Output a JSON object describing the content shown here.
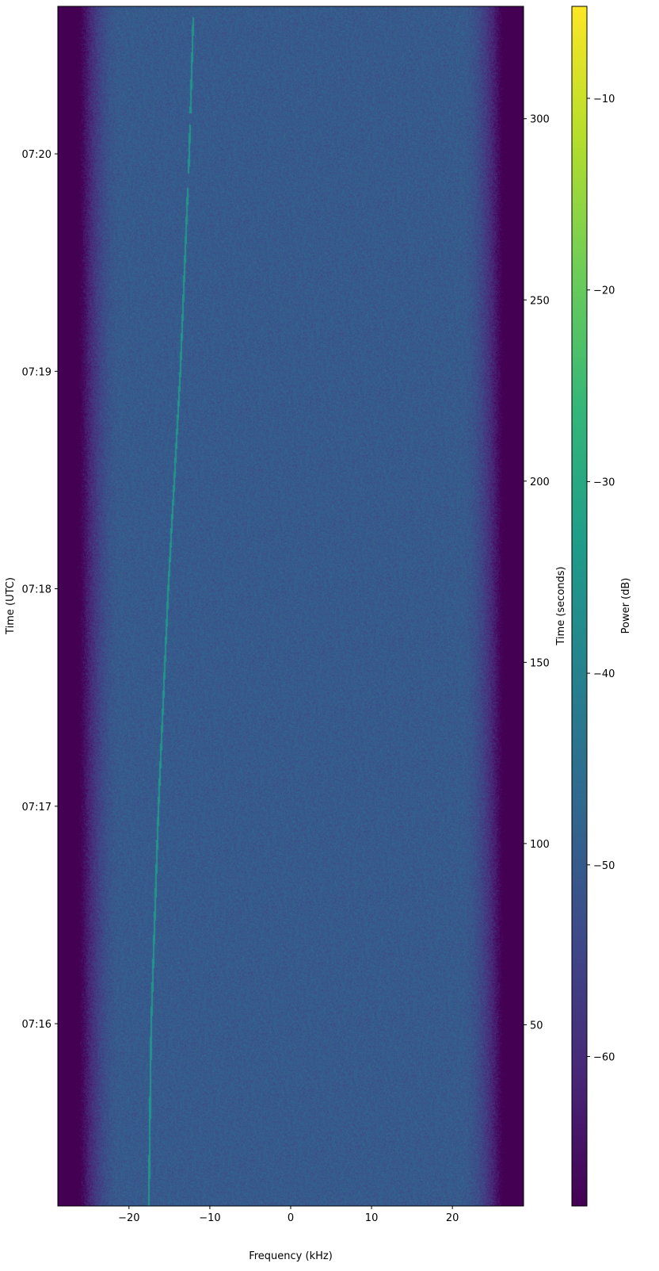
{
  "chart_data": {
    "type": "heatmap",
    "subtype": "spectrogram",
    "colormap": "viridis",
    "xlabel": "Frequency (kHz)",
    "ylabel_left": "Time (UTC)",
    "ylabel_right": "Time (seconds)",
    "colorbar_label": "Power (dB)",
    "xlim": [
      -28.8,
      28.8
    ],
    "x_ticks": [
      -20,
      -10,
      0,
      10,
      20
    ],
    "x_tick_labels": [
      "−20",
      "−10",
      "0",
      "10",
      "20"
    ],
    "ylim_seconds": [
      0,
      331
    ],
    "right_y_ticks": [
      50,
      100,
      150,
      200,
      250,
      300
    ],
    "right_y_tick_labels": [
      "50",
      "100",
      "150",
      "200",
      "250",
      "300"
    ],
    "left_y_ticks_seconds": [
      50.3,
      110.3,
      170.3,
      230.3,
      290.3
    ],
    "left_y_tick_labels": [
      "07:16",
      "07:17",
      "07:18",
      "07:19",
      "07:20"
    ],
    "clim_db": [
      -67.8,
      -5.2
    ],
    "colorbar_ticks": [
      -60,
      -50,
      -40,
      -30,
      -20,
      -10
    ],
    "colorbar_tick_labels": [
      "−60",
      "−50",
      "−40",
      "−30",
      "−20",
      "−10"
    ],
    "noise_floor_db": -50,
    "passband_edge_khz": 26.5,
    "signal_track": [
      {
        "t": 0,
        "f": -17.6,
        "db": -35
      },
      {
        "t": 50,
        "f": -17.3,
        "db": -35
      },
      {
        "t": 110,
        "f": -16.4,
        "db": -35
      },
      {
        "t": 170,
        "f": -15.2,
        "db": -35
      },
      {
        "t": 230,
        "f": -13.7,
        "db": -35
      },
      {
        "t": 290,
        "f": -12.6,
        "db": -35
      },
      {
        "t": 328,
        "f": -12.1,
        "db": -35
      }
    ]
  }
}
